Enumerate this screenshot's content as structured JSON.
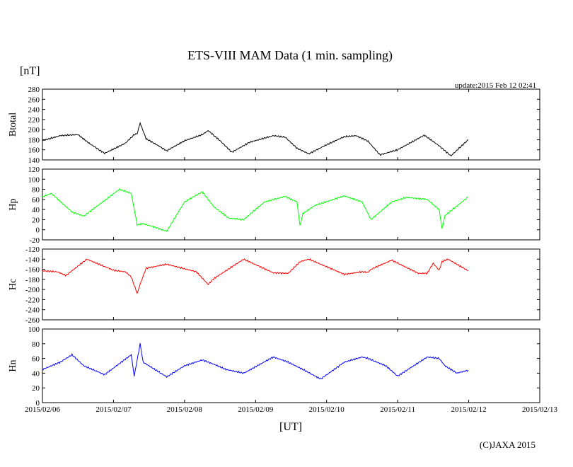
{
  "title": "ETS-VIII MAM Data (1 min. sampling)",
  "unit_label": "[nT]",
  "update_text": "update:2015 Feb 12 02:41",
  "xlabel": "[UT]",
  "copyright": "(C)JAXA 2015",
  "x_ticks": [
    "2015/02/06",
    "2015/02/07",
    "2015/02/08",
    "2015/02/09",
    "2015/02/10",
    "2015/02/11",
    "2015/02/12",
    "2015/02/13"
  ],
  "chart_data": [
    {
      "type": "line",
      "ylabel": "Btotal",
      "ylim": [
        140,
        280
      ],
      "yticks": [
        140,
        160,
        180,
        200,
        220,
        240,
        260,
        280
      ],
      "series": [
        {
          "color": "#000000",
          "x": [
            "2015/02/06 00:00",
            "2015/02/06 06:00",
            "2015/02/06 12:00",
            "2015/02/06 16:00",
            "2015/02/06 21:00",
            "2015/02/07 04:00",
            "2015/02/07 07:00",
            "2015/02/07 08:00",
            "2015/02/07 09:00",
            "2015/02/07 11:00",
            "2015/02/07 14:00",
            "2015/02/07 16:00",
            "2015/02/07 18:00",
            "2015/02/08 00:00",
            "2015/02/08 06:00",
            "2015/02/08 08:00",
            "2015/02/08 12:00",
            "2015/02/08 16:00",
            "2015/02/08 22:00",
            "2015/02/09 06:00",
            "2015/02/09 10:00",
            "2015/02/09 14:00",
            "2015/02/09 18:00",
            "2015/02/10 00:00",
            "2015/02/10 06:00",
            "2015/02/10 10:00",
            "2015/02/10 14:00",
            "2015/02/10 18:00",
            "2015/02/11 00:00",
            "2015/02/11 09:00",
            "2015/02/11 14:00",
            "2015/02/11 18:00",
            "2015/02/11 23:50"
          ],
          "y": [
            178,
            188,
            190,
            172,
            153,
            173,
            190,
            192,
            213,
            182,
            172,
            165,
            158,
            178,
            190,
            198,
            178,
            155,
            175,
            188,
            185,
            163,
            152,
            170,
            186,
            188,
            177,
            150,
            160,
            189,
            168,
            148,
            180
          ]
        }
      ]
    },
    {
      "type": "line",
      "ylabel": "Hp",
      "ylim": [
        -20,
        120
      ],
      "yticks": [
        -20,
        0,
        20,
        40,
        60,
        80,
        100,
        120
      ],
      "series": [
        {
          "color": "#00ff00",
          "x": [
            "2015/02/06 00:00",
            "2015/02/06 03:00",
            "2015/02/06 10:00",
            "2015/02/06 14:00",
            "2015/02/07 02:00",
            "2015/02/07 06:00",
            "2015/02/07 08:00",
            "2015/02/07 10:00",
            "2015/02/07 14:00",
            "2015/02/07 18:00",
            "2015/02/08 00:00",
            "2015/02/08 06:00",
            "2015/02/08 10:00",
            "2015/02/08 15:00",
            "2015/02/08 20:00",
            "2015/02/09 03:00",
            "2015/02/09 10:00",
            "2015/02/09 14:00",
            "2015/02/09 15:00",
            "2015/02/09 16:00",
            "2015/02/09 20:00",
            "2015/02/10 06:00",
            "2015/02/10 12:00",
            "2015/02/10 15:00",
            "2015/02/10 22:00",
            "2015/02/11 03:00",
            "2015/02/11 10:00",
            "2015/02/11 14:00",
            "2015/02/11 15:00",
            "2015/02/11 16:00",
            "2015/02/11 23:50"
          ],
          "y": [
            65,
            72,
            35,
            27,
            80,
            72,
            10,
            12,
            5,
            -3,
            55,
            75,
            45,
            23,
            20,
            55,
            66,
            55,
            8,
            32,
            48,
            67,
            55,
            20,
            55,
            64,
            60,
            40,
            2,
            28,
            65
          ]
        }
      ]
    },
    {
      "type": "line",
      "ylabel": "Hc",
      "ylim": [
        -260,
        -120
      ],
      "yticks": [
        -260,
        -240,
        -220,
        -200,
        -180,
        -160,
        -140,
        -120
      ],
      "series": [
        {
          "color": "#ff0000",
          "x": [
            "2015/02/06 00:00",
            "2015/02/06 05:00",
            "2015/02/06 08:00",
            "2015/02/06 15:00",
            "2015/02/07 00:00",
            "2015/02/07 04:00",
            "2015/02/07 06:00",
            "2015/02/07 08:00",
            "2015/02/07 09:00",
            "2015/02/07 11:00",
            "2015/02/07 18:00",
            "2015/02/08 04:00",
            "2015/02/08 08:00",
            "2015/02/08 10:00",
            "2015/02/08 20:00",
            "2015/02/09 06:00",
            "2015/02/09 11:00",
            "2015/02/09 15:00",
            "2015/02/09 18:00",
            "2015/02/10 06:00",
            "2015/02/10 12:00",
            "2015/02/10 14:00",
            "2015/02/10 15:00",
            "2015/02/10 22:00",
            "2015/02/11 07:00",
            "2015/02/11 10:00",
            "2015/02/11 12:00",
            "2015/02/11 14:00",
            "2015/02/11 15:00",
            "2015/02/11 17:00",
            "2015/02/11 23:50"
          ],
          "y": [
            -163,
            -165,
            -172,
            -140,
            -162,
            -165,
            -175,
            -208,
            -190,
            -158,
            -150,
            -165,
            -190,
            -178,
            -140,
            -167,
            -168,
            -145,
            -140,
            -170,
            -165,
            -166,
            -160,
            -142,
            -168,
            -168,
            -148,
            -162,
            -145,
            -140,
            -163
          ]
        }
      ]
    },
    {
      "type": "line",
      "ylabel": "Hn",
      "ylim": [
        0,
        100
      ],
      "yticks": [
        0,
        20,
        40,
        60,
        80,
        100
      ],
      "series": [
        {
          "color": "#0000ff",
          "x": [
            "2015/02/06 00:00",
            "2015/02/06 06:00",
            "2015/02/06 10:00",
            "2015/02/06 14:00",
            "2015/02/06 21:00",
            "2015/02/07 06:00",
            "2015/02/07 07:00",
            "2015/02/07 09:00",
            "2015/02/07 10:00",
            "2015/02/07 12:00",
            "2015/02/07 18:00",
            "2015/02/08 00:00",
            "2015/02/08 06:00",
            "2015/02/08 10:00",
            "2015/02/08 14:00",
            "2015/02/08 20:00",
            "2015/02/09 06:00",
            "2015/02/09 11:00",
            "2015/02/09 16:00",
            "2015/02/09 22:00",
            "2015/02/10 06:00",
            "2015/02/10 12:00",
            "2015/02/10 14:00",
            "2015/02/10 20:00",
            "2015/02/11 00:00",
            "2015/02/11 10:00",
            "2015/02/11 14:00",
            "2015/02/11 16:00",
            "2015/02/11 20:00",
            "2015/02/11 23:50"
          ],
          "y": [
            45,
            55,
            65,
            50,
            38,
            65,
            36,
            80,
            55,
            50,
            35,
            50,
            58,
            52,
            45,
            40,
            62,
            55,
            45,
            32,
            55,
            62,
            60,
            50,
            36,
            62,
            60,
            50,
            40,
            44
          ]
        }
      ]
    }
  ]
}
